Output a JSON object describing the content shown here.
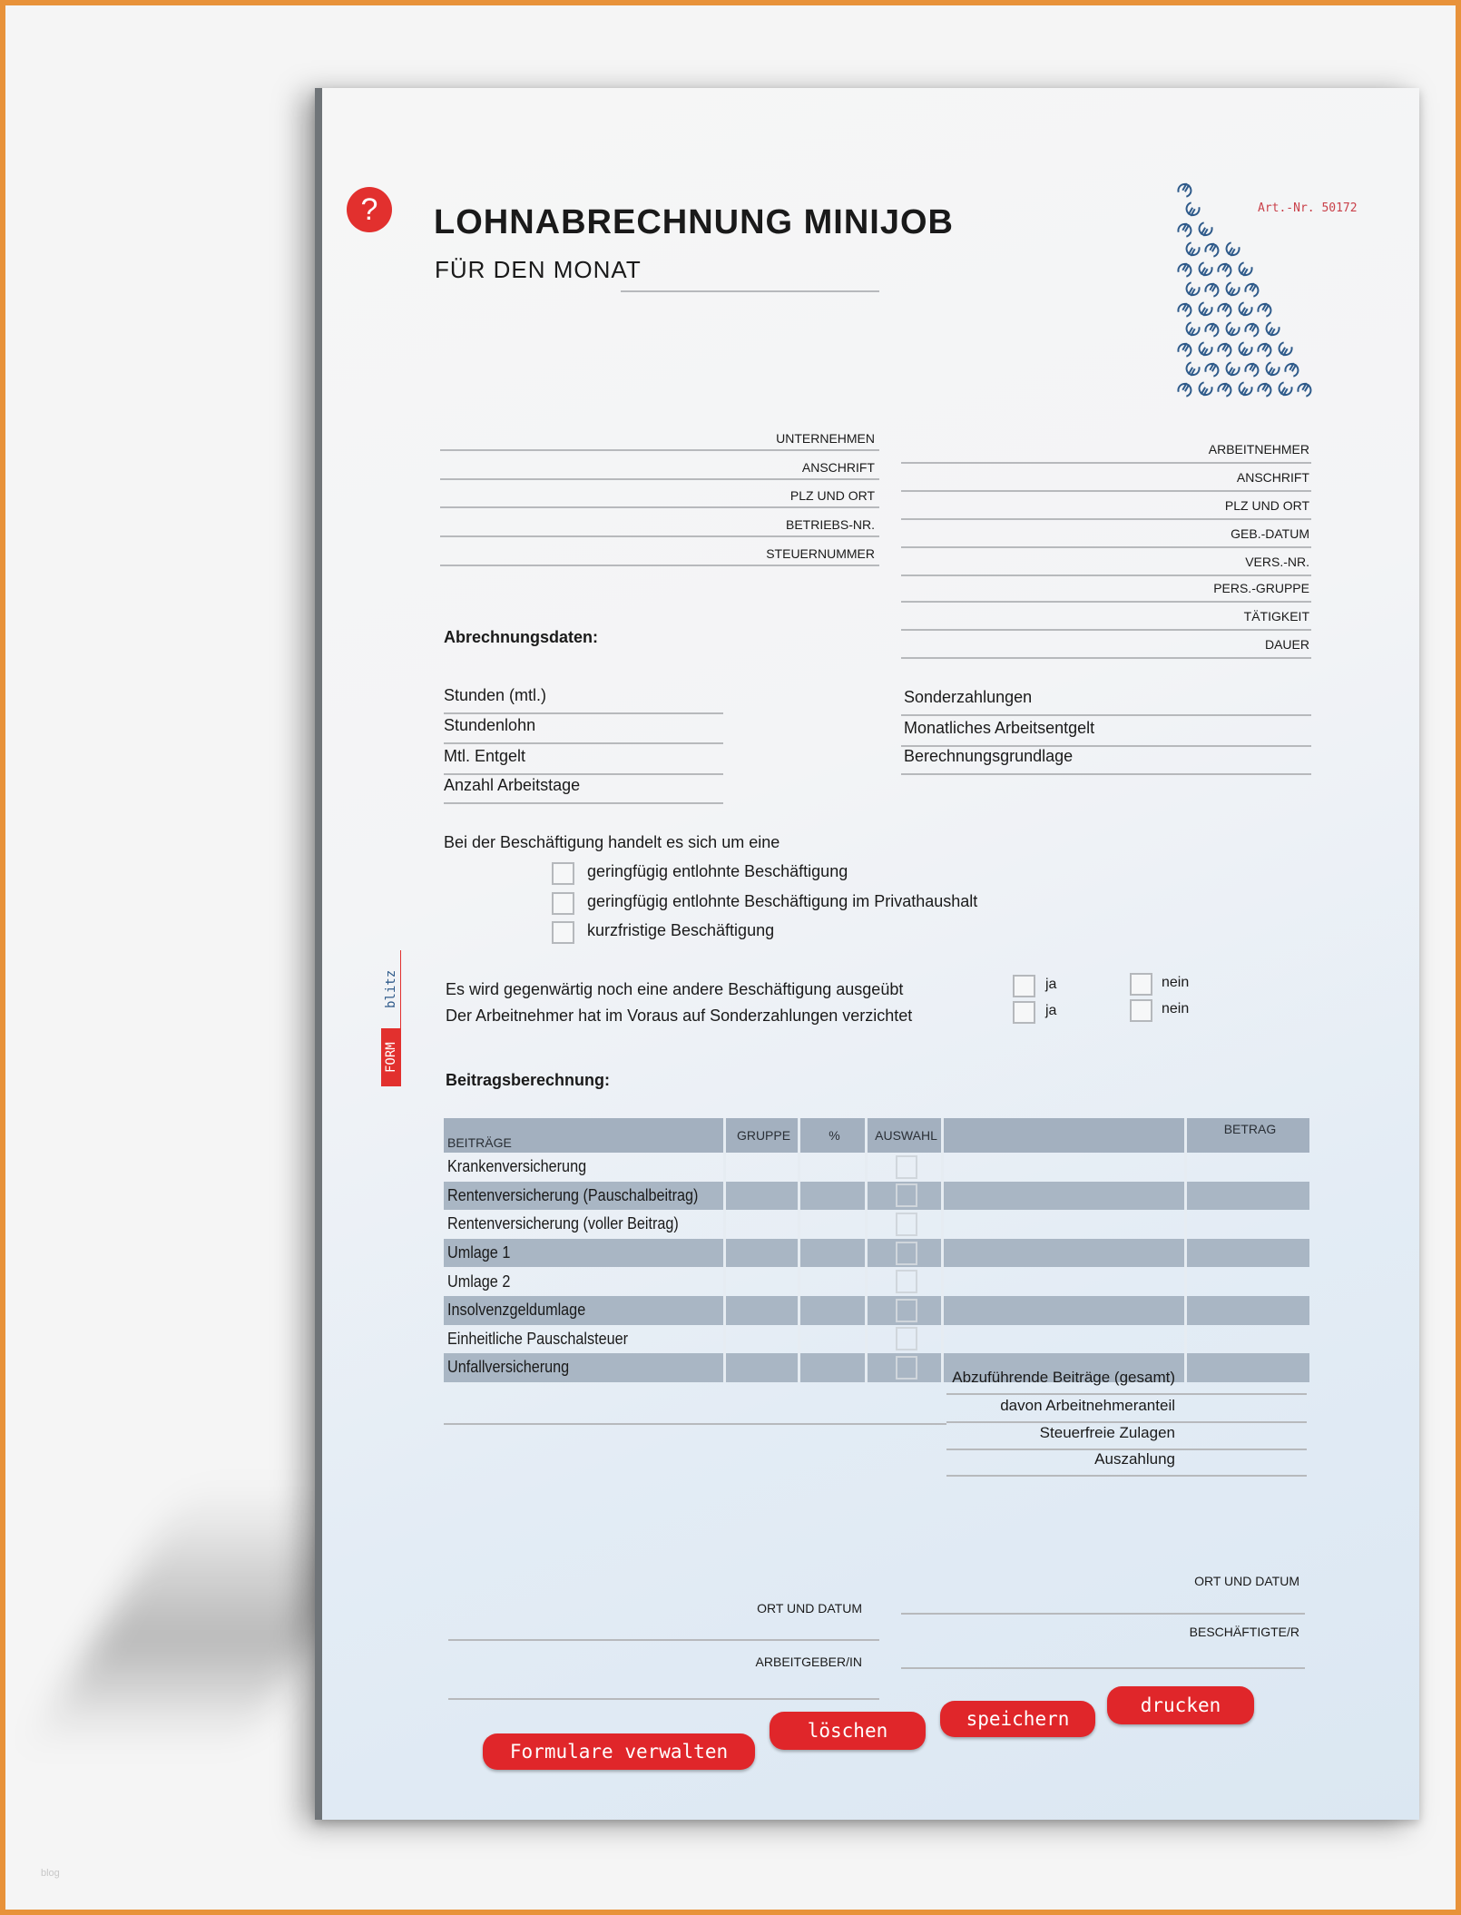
{
  "header": {
    "title": "LOHNABRECHNUNG MINIJOB",
    "subtitle": "FÜR DEN MONAT",
    "art_nr": "Art.-Nr. 50172",
    "help_icon": "?"
  },
  "brand": {
    "logo_form": "FORM",
    "logo_blitz": "blitz",
    "accent": "#e2302e",
    "blue": "#2e5a8a"
  },
  "employer_fields": [
    "UNTERNEHMEN",
    "ANSCHRIFT",
    "PLZ UND ORT",
    "BETRIEBS-NR.",
    "STEUERNUMMER"
  ],
  "employee_fields": [
    "ARBEITNEHMER",
    "ANSCHRIFT",
    "PLZ UND ORT",
    "GEB.-DATUM",
    "VERS.-NR.",
    "PERS.-GRUPPE",
    "TÄTIGKEIT",
    "DAUER"
  ],
  "billing": {
    "heading": "Abrechnungsdaten:",
    "left": [
      "Stunden (mtl.)",
      "Stundenlohn",
      "Mtl. Entgelt",
      "Anzahl Arbeitstage"
    ],
    "right": [
      "Sonderzahlungen",
      "Monatliches Arbeitsentgelt",
      "Berechnungsgrundlage"
    ]
  },
  "employment_type": {
    "question": "Bei der Beschäftigung handelt es sich um eine",
    "options": [
      "geringfügig entlohnte Beschäftigung",
      "geringfügig entlohnte Beschäftigung im Privathaushalt",
      "kurzfristige Beschäftigung"
    ]
  },
  "yes_no": {
    "questions": [
      "Es wird gegenwärtig noch eine andere Beschäftigung ausgeübt",
      "Der Arbeitnehmer hat im Voraus auf Sonderzahlungen verzichtet"
    ],
    "yes": "ja",
    "no": "nein"
  },
  "contributions": {
    "heading": "Beitragsberechnung:",
    "columns": [
      "BEITRÄGE",
      "GRUPPE",
      "%",
      "AUSWAHL",
      "",
      "BETRAG"
    ],
    "rows": [
      "Krankenversicherung",
      "Rentenversicherung (Pauschalbeitrag)",
      "Rentenversicherung (voller Beitrag)",
      "Umlage 1",
      "Umlage 2",
      "Insolvenzgeldumlage",
      "Einheitliche Pauschalsteuer",
      "Unfallversicherung"
    ],
    "totals": [
      "Abzuführende Beiträge (gesamt)",
      "davon Arbeitnehmeranteil",
      "Steuerfreie Zulagen",
      "Auszahlung"
    ]
  },
  "signatures": {
    "place_date": "ORT UND DATUM",
    "employer": "ARBEITGEBER/IN",
    "employee": "BESCHÄFTIGTE/R"
  },
  "buttons": {
    "manage": "Formulare verwalten",
    "delete": "löschen",
    "save": "speichern",
    "print": "drucken"
  },
  "watermark": "blog"
}
